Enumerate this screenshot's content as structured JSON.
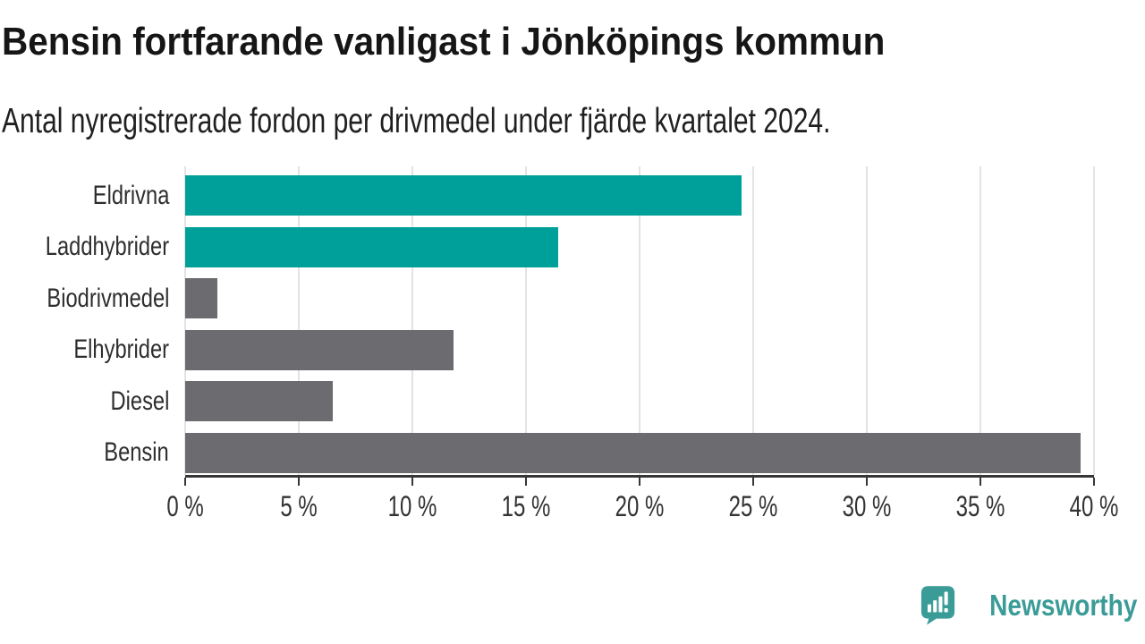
{
  "header": {
    "title": "Bensin fortfarande vanligast i Jönköpings kommun",
    "subtitle": "Antal nyregistrerade fordon per drivmedel under fjärde kvartalet 2024."
  },
  "chart_data": {
    "type": "bar",
    "orientation": "horizontal",
    "title": "Bensin fortfarande vanligast i Jönköpings kommun",
    "subtitle": "Antal nyregistrerade fordon per drivmedel under fjärde kvartalet 2024.",
    "categories": [
      "Eldrivna",
      "Laddhybrider",
      "Biodrivmedel",
      "Elhybrider",
      "Diesel",
      "Bensin"
    ],
    "values": [
      24.5,
      16.4,
      1.4,
      11.8,
      6.5,
      39.4
    ],
    "unit": "%",
    "bar_colors": [
      "#00a09a",
      "#00a09a",
      "#6b6b70",
      "#6b6b70",
      "#6b6b70",
      "#6b6b70"
    ],
    "xlabel": "",
    "ylabel": "",
    "xlim": [
      0,
      40
    ],
    "x_ticks": [
      0,
      5,
      10,
      15,
      20,
      25,
      30,
      35,
      40
    ],
    "x_tick_labels": [
      "0 %",
      "5 %",
      "10 %",
      "15 %",
      "20 %",
      "25 %",
      "30 %",
      "35 %",
      "40 %"
    ],
    "grid": "vertical-on",
    "legend": "none"
  },
  "colors": {
    "teal_bar": "#00a09a",
    "gray_bar": "#6b6b70",
    "axis": "#363636",
    "gridline": "#e3e3e3",
    "text": "#1a1a1a",
    "brand_teal": "#3b9c97"
  },
  "footer": {
    "brand": "Newsworthy",
    "brand_color": "#3b9c97",
    "logo_icon": "speech-bubble-bar-chart-icon"
  }
}
